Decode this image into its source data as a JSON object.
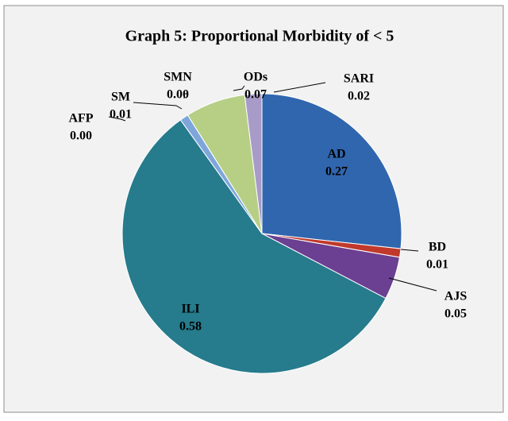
{
  "chart_data": {
    "type": "pie",
    "title": "Graph 5: Proportional Morbidity of < 5",
    "categories": [
      "AD",
      "BD",
      "AJS",
      "ILI",
      "AFP",
      "SM",
      "SMN",
      "ODs",
      "SARI"
    ],
    "values": [
      0.27,
      0.01,
      0.05,
      0.58,
      0,
      0.01,
      0,
      0.07,
      0.02
    ],
    "value_labels": [
      "0.27",
      "0.01",
      "0.05",
      "0.58",
      "0.00",
      "0.01",
      "0.00",
      "0.07",
      "0.02"
    ],
    "colors": [
      "#3066ae",
      "#c0392b",
      "#6b3f91",
      "#267b8c",
      "#3ea2c4",
      "#7ea6db",
      "#e0956b",
      "#b6cf85",
      "#a89bc8"
    ]
  }
}
